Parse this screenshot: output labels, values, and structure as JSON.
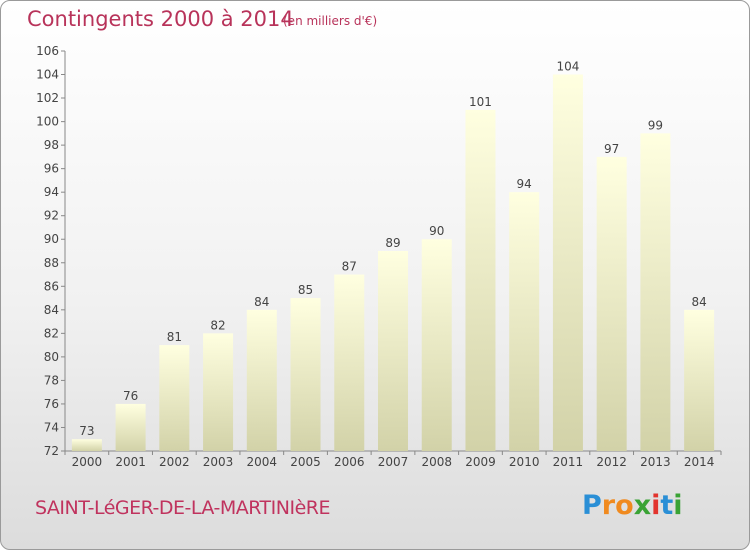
{
  "header": {
    "title": "Contingents 2000 à 2014",
    "unit": "(en milliers d'€)"
  },
  "footer": {
    "commune": "SAINT-LéGER-DE-LA-MARTINIèRE",
    "logo_letters": [
      "P",
      "r",
      "o",
      "x",
      "i",
      "t",
      "i"
    ],
    "logo_colors": [
      "#2a8fd6",
      "#f08a1f",
      "#f08a1f",
      "#3aa335",
      "#e2342e",
      "#2a8fd6",
      "#3aa335"
    ]
  },
  "chart_data": {
    "type": "bar",
    "categories": [
      "2000",
      "2001",
      "2002",
      "2003",
      "2004",
      "2005",
      "2006",
      "2007",
      "2008",
      "2009",
      "2010",
      "2011",
      "2012",
      "2013",
      "2014"
    ],
    "values": [
      73,
      76,
      81,
      82,
      84,
      85,
      87,
      89,
      90,
      101,
      94,
      104,
      97,
      99,
      84
    ],
    "ylim": [
      72,
      106
    ],
    "yticks": [
      72,
      74,
      76,
      78,
      80,
      82,
      84,
      86,
      88,
      90,
      92,
      94,
      96,
      98,
      100,
      102,
      104,
      106
    ],
    "grid": false,
    "bar_color_top": "#ffffe0",
    "bar_color_bottom": "#d2d2a8",
    "title": "Contingents 2000 à 2014",
    "xlabel": "",
    "ylabel": ""
  }
}
